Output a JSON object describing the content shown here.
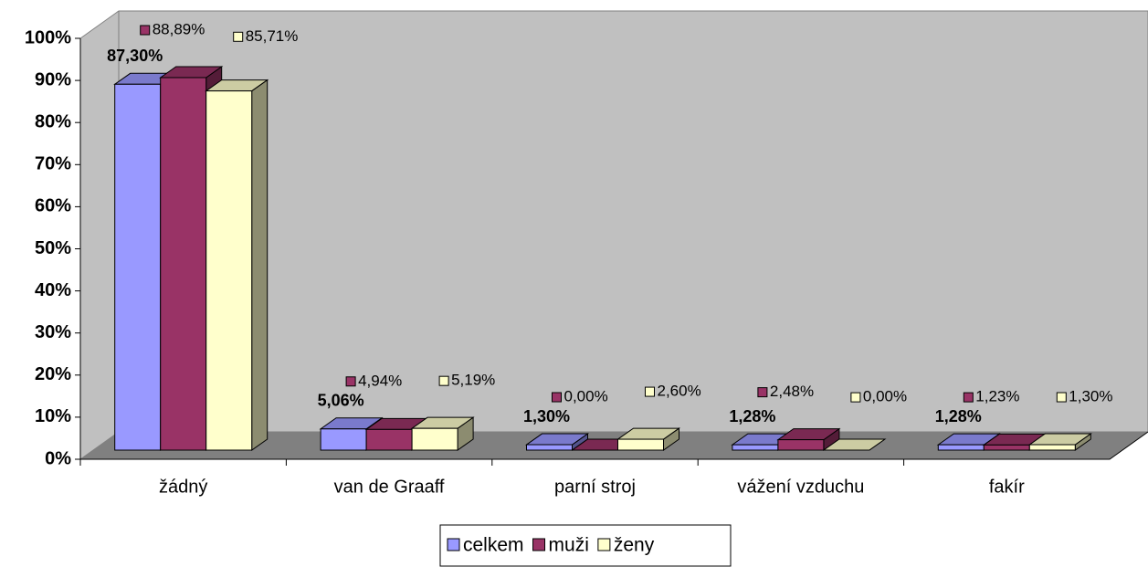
{
  "chart_data": {
    "type": "bar3d",
    "categories": [
      "žádný",
      "van de Graaff",
      "parní stroj",
      "vážení vzduchu",
      "fakír"
    ],
    "series": [
      {
        "name": "celkem",
        "color": "#9999ff",
        "values": [
          87.3,
          5.06,
          1.3,
          1.28,
          1.28
        ],
        "value_labels": [
          "87,30%",
          "5,06%",
          "1,30%",
          "1,28%",
          "1,28%"
        ]
      },
      {
        "name": "muži",
        "color": "#993366",
        "values": [
          88.89,
          4.94,
          0.0,
          2.48,
          1.23
        ],
        "value_labels": [
          "88,89%",
          "4,94%",
          "0,00%",
          "2,48%",
          "1,23%"
        ]
      },
      {
        "name": "ženy",
        "color": "#ffffcc",
        "values": [
          85.71,
          5.19,
          2.6,
          0.0,
          1.3
        ],
        "value_labels": [
          "85,71%",
          "5,19%",
          "2,60%",
          "0,00%",
          "1,30%"
        ]
      }
    ],
    "ylim": [
      0,
      100
    ],
    "yticks": [
      {
        "value": 0,
        "label": "0%"
      },
      {
        "value": 10,
        "label": "10%"
      },
      {
        "value": 20,
        "label": "20%"
      },
      {
        "value": 30,
        "label": "30%"
      },
      {
        "value": 40,
        "label": "40%"
      },
      {
        "value": 50,
        "label": "50%"
      },
      {
        "value": 60,
        "label": "60%"
      },
      {
        "value": 70,
        "label": "70%"
      },
      {
        "value": 80,
        "label": "80%"
      },
      {
        "value": 90,
        "label": "90%"
      },
      {
        "value": 100,
        "label": "100%"
      }
    ],
    "legend": "bottom"
  }
}
